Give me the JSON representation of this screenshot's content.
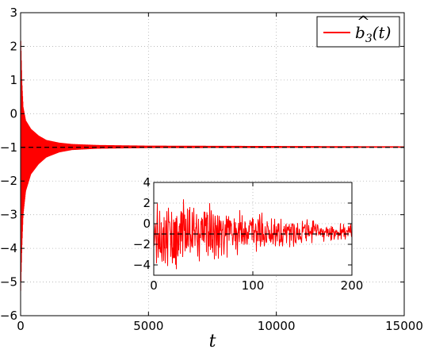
{
  "chart_data": [
    {
      "type": "line",
      "title": "",
      "xlabel": "t",
      "ylabel": "",
      "xlim": [
        0,
        15000
      ],
      "ylim": [
        -6,
        3
      ],
      "xticks": [
        0,
        5000,
        10000,
        15000
      ],
      "yticks": [
        -6,
        -5,
        -4,
        -3,
        -2,
        -1,
        0,
        1,
        2,
        3
      ],
      "xtick_labels": [
        "0",
        "5000",
        "10000",
        "15000"
      ],
      "ytick_labels": [
        "−6",
        "−5",
        "−4",
        "−3",
        "−2",
        "−1",
        "0",
        "1",
        "2",
        "3"
      ],
      "grid": true,
      "legend_position": "top-right",
      "series": [
        {
          "name": "b̂3(t)",
          "color": "#ff0000",
          "style": "solid",
          "description": "decaying oscillation",
          "envelope_x": [
            0,
            50,
            100,
            200,
            400,
            700,
            1000,
            1500,
            2000,
            3000,
            5000,
            15000
          ],
          "envelope_upper": [
            2.45,
            1.0,
            0.2,
            -0.2,
            -0.45,
            -0.65,
            -0.78,
            -0.86,
            -0.9,
            -0.93,
            -0.95,
            -0.97
          ],
          "envelope_lower": [
            -5.4,
            -4.0,
            -3.0,
            -2.3,
            -1.8,
            -1.5,
            -1.3,
            -1.15,
            -1.08,
            -1.04,
            -1.02,
            -1.01
          ]
        },
        {
          "name": "",
          "color": "#000000",
          "style": "dashed",
          "x": [
            0,
            15000
          ],
          "y": [
            -1,
            -1
          ]
        }
      ]
    },
    {
      "type": "line",
      "title": "",
      "inset": true,
      "xlim": [
        0,
        200
      ],
      "ylim": [
        -5,
        4
      ],
      "xticks": [
        0,
        100,
        200
      ],
      "yticks": [
        -4,
        -2,
        0,
        2,
        4
      ],
      "xtick_labels": [
        "0",
        "100",
        "200"
      ],
      "ytick_labels": [
        "−4",
        "−2",
        "0",
        "2",
        "4"
      ],
      "grid": true,
      "series": [
        {
          "name": "",
          "color": "#ff0000",
          "style": "solid",
          "description": "noisy oscillation",
          "envelope_x": [
            0,
            25,
            50,
            75,
            100,
            125,
            150,
            175,
            200
          ],
          "envelope_upper": [
            2.3,
            2.4,
            2.5,
            1.6,
            1.2,
            0.9,
            0.5,
            0.2,
            0.0
          ],
          "envelope_lower": [
            -4.3,
            -4.6,
            -3.8,
            -3.3,
            -2.8,
            -2.5,
            -2.1,
            -1.8,
            -1.6
          ]
        },
        {
          "name": "",
          "color": "#000000",
          "style": "dashed",
          "x": [
            0,
            200
          ],
          "y": [
            -1,
            -1
          ]
        }
      ]
    }
  ]
}
